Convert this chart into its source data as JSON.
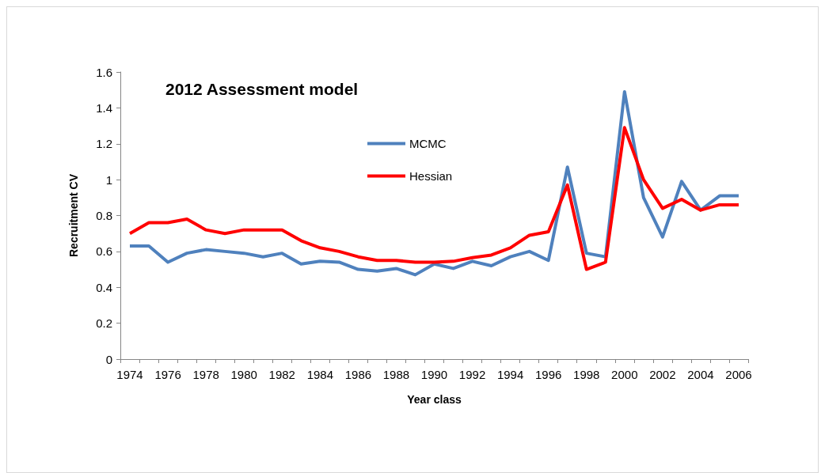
{
  "chart_data": {
    "type": "line",
    "title": "2012 Assessment model",
    "xlabel": "Year class",
    "ylabel": "Recruitment CV",
    "categories": [
      "1974",
      null,
      "1976",
      null,
      "1978",
      null,
      "1980",
      null,
      "1982",
      null,
      "1984",
      null,
      "1986",
      null,
      "1988",
      null,
      "1990",
      null,
      "1992",
      null,
      "1994",
      null,
      "1996",
      null,
      "1998",
      null,
      "2000",
      null,
      "2002",
      null,
      "2004",
      null,
      "2006"
    ],
    "series": [
      {
        "name": "MCMC",
        "color": "#4f81bd",
        "values": [
          0.63,
          0.63,
          0.54,
          0.59,
          0.61,
          0.6,
          0.59,
          0.57,
          0.59,
          0.53,
          0.545,
          0.54,
          0.5,
          0.49,
          0.505,
          0.47,
          0.53,
          0.505,
          0.545,
          0.52,
          0.57,
          0.6,
          0.55,
          1.07,
          0.59,
          0.57,
          1.49,
          0.9,
          0.68,
          0.99,
          0.83,
          0.91,
          0.91
        ]
      },
      {
        "name": "Hessian",
        "color": "#ff0000",
        "values": [
          0.7,
          0.76,
          0.76,
          0.78,
          0.72,
          0.7,
          0.72,
          0.72,
          0.72,
          0.66,
          0.62,
          0.6,
          0.57,
          0.55,
          0.55,
          0.54,
          0.54,
          0.545,
          0.565,
          0.58,
          0.62,
          0.69,
          0.71,
          0.97,
          0.5,
          0.54,
          1.29,
          1.0,
          0.84,
          0.89,
          0.83,
          0.86,
          0.86
        ]
      }
    ],
    "ylim": [
      0,
      1.6
    ],
    "yticks": [
      0,
      0.2,
      0.4,
      0.6,
      0.8,
      1,
      1.2,
      1.4,
      1.6
    ],
    "grid": false,
    "legend": "top",
    "marker": "none",
    "line_style": "solid"
  }
}
